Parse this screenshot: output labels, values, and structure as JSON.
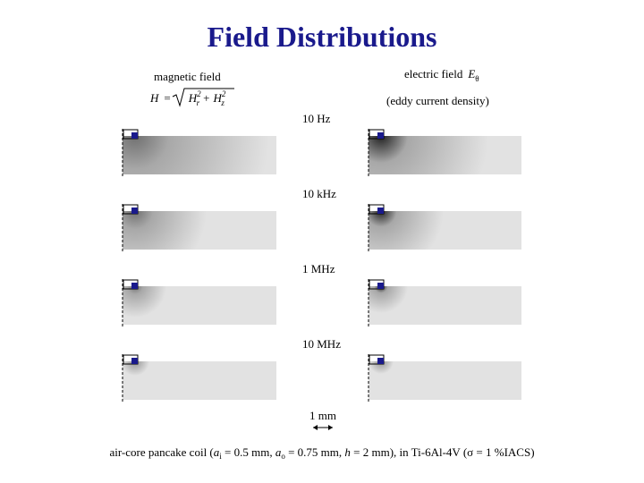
{
  "title": "Field Distributions",
  "left_label": "magnetic field",
  "right_label": {
    "text": "electric field",
    "symbol": "E",
    "subscript": "θ"
  },
  "right_note": "(eddy current density)",
  "formula": {
    "lhs": "H",
    "eq": "=",
    "h1": "H",
    "s1": "r",
    "p1": "2",
    "plus": "+",
    "h2": "H",
    "s2": "z",
    "p2": "2"
  },
  "frequencies": [
    "10 Hz",
    "10 kHz",
    "1 MHz",
    "10 MHz"
  ],
  "scale_label": "1 mm",
  "caption": [
    {
      "text": "air-core pancake coil ("
    },
    {
      "text": "a",
      "style": "italic"
    },
    {
      "text": "i",
      "style": "sub"
    },
    {
      "text": " = 0.5 mm, "
    },
    {
      "text": "a",
      "style": "italic"
    },
    {
      "text": "o",
      "style": "sub"
    },
    {
      "text": " = 0.75 mm, "
    },
    {
      "text": "h",
      "style": "italic"
    },
    {
      "text": " = 2 mm),  in Ti-6Al-4V (σ = 1 %IACS)"
    }
  ]
}
